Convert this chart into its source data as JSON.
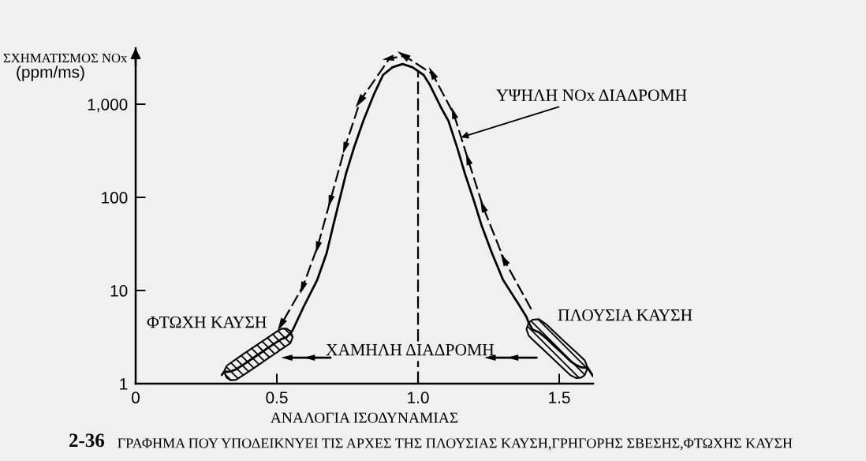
{
  "chart_data": {
    "type": "line",
    "xlabel": "ΑΝΑΛΟΓΙΑ ΙΣΟΔΥΝΑΜΙΑΣ",
    "ylabel": "ΣΧΗΜΑΤΙΣΜΟΣ NOx\n(ppm/ms)",
    "log": "y",
    "xlim": [
      0,
      1.62
    ],
    "xticks": [
      0,
      0.5,
      {
        "value": 1.0,
        "label": "1.0"
      },
      1.5
    ],
    "ylim": [
      1,
      4000
    ],
    "yticks": [
      1,
      10,
      100,
      {
        "value": 1000,
        "label": "1,000"
      }
    ],
    "series": [
      {
        "color": "#000000",
        "line_style": "solid",
        "x": [
          0.305,
          0.313,
          0.322,
          0.336,
          0.355,
          0.383,
          0.411,
          0.439,
          0.467,
          0.495,
          0.517,
          0.534,
          0.548,
          0.556,
          0.597,
          0.643,
          0.676,
          0.699,
          0.722,
          0.745,
          0.773,
          0.806,
          0.843,
          0.876,
          0.91,
          0.945,
          0.98,
          1.02,
          1.043,
          1.08,
          1.108,
          1.139,
          1.166,
          1.197,
          1.226,
          1.26,
          1.301,
          1.359,
          1.384,
          1.392,
          1.406,
          1.428,
          1.456,
          1.484,
          1.512,
          1.54,
          1.56,
          1.577,
          1.59,
          1.601,
          1.62
        ],
        "values": [
          1.24,
          1.34,
          1.34,
          1.35,
          1.42,
          1.61,
          1.84,
          2.1,
          2.4,
          2.74,
          3.02,
          3.14,
          3.5,
          3.75,
          6.9,
          13,
          25,
          49,
          94,
          180,
          340,
          660,
          1260,
          2060,
          2500,
          2700,
          2500,
          2060,
          1590,
          940,
          660,
          340,
          180,
          94,
          49,
          26,
          13,
          6.9,
          5.2,
          4.5,
          3.8,
          3.56,
          3.03,
          2.52,
          2.1,
          1.74,
          1.58,
          1.5,
          1.48,
          1.48,
          1.2
        ],
        "lower": [
          null,
          1.34,
          1.16,
          1.09,
          1.1,
          1.24,
          1.42,
          1.62,
          1.85,
          2.11,
          2.35,
          2.54,
          2.73,
          3.16,
          null,
          null,
          null,
          null,
          null,
          null,
          null,
          null,
          null,
          null,
          null,
          null,
          null,
          null,
          null,
          null,
          null,
          null,
          null,
          null,
          null,
          null,
          null,
          null,
          3.84,
          3.27,
          2.97,
          2.57,
          2.14,
          1.78,
          1.48,
          1.23,
          1.15,
          1.16,
          1.23,
          1.48,
          null
        ],
        "upper": [
          null,
          1.34,
          1.55,
          1.67,
          1.83,
          2.09,
          2.39,
          2.73,
          3.11,
          3.55,
          3.89,
          3.89,
          3.67,
          3.16,
          null,
          null,
          null,
          null,
          null,
          null,
          null,
          null,
          null,
          null,
          null,
          null,
          null,
          null,
          null,
          null,
          null,
          null,
          null,
          null,
          null,
          null,
          null,
          null,
          3.84,
          4.52,
          4.86,
          4.92,
          4.29,
          3.56,
          2.96,
          2.47,
          2.17,
          1.94,
          1.78,
          1.48,
          null
        ]
      },
      {
        "name": "ΥΨΗΛΗ NOx ΔΙΑΔΡΟΜΗ",
        "color": "#000000",
        "line_style": "dashed",
        "marker": "triangle",
        "x": [
          1.401,
          1.306,
          1.231,
          1.178,
          1.127,
          1.052,
          0.952,
          0.899,
          0.796,
          0.742,
          0.69,
          0.645,
          0.592,
          0.517
        ],
        "values": [
          6.3,
          21,
          78,
          250,
          780,
          2100,
          3300,
          3100,
          1100,
          350,
          94,
          30,
          11,
          4.4
        ]
      },
      {
        "color": "#000000",
        "line_style": "solid",
        "marker": "triangle",
        "x": [
          1.42,
          1.34,
          1.26
        ],
        "values": [
          1.9,
          1.9,
          1.9
        ]
      },
      {
        "color": "#000000",
        "line_style": "solid",
        "marker": "triangle",
        "x": [
          0.69,
          0.62,
          0.54
        ],
        "values": [
          1.9,
          1.9,
          1.9
        ]
      }
    ],
    "ref_lines": [
      {
        "axis": "x",
        "value": 1.0,
        "line_style": "dashed",
        "color": "#000000"
      }
    ],
    "annotations": [
      "ΦΤΩΧΗ ΚΑΥΣΗ",
      "ΠΛΟΥΣΙΑ ΚΑΥΣΗ",
      "ΧΑΜΗΛΗ ΔΙΑΔΡΟΜΗ",
      "2-36",
      "ΓΡΑΦΗΜΑ ΠΟΥ ΥΠΟΔΕΙΚΝΥΕΙ ΤΙΣ ΑΡΧΕΣ ΤΗΣ ΠΛΟΥΣΙΑΣ ΚΑΥΣΗ,ΓΡΗΓΟΡΗΣ ΣΒΕΣΗΣ,ΦΤΩΧΗΣ ΚΑΥΣΗ"
    ]
  }
}
